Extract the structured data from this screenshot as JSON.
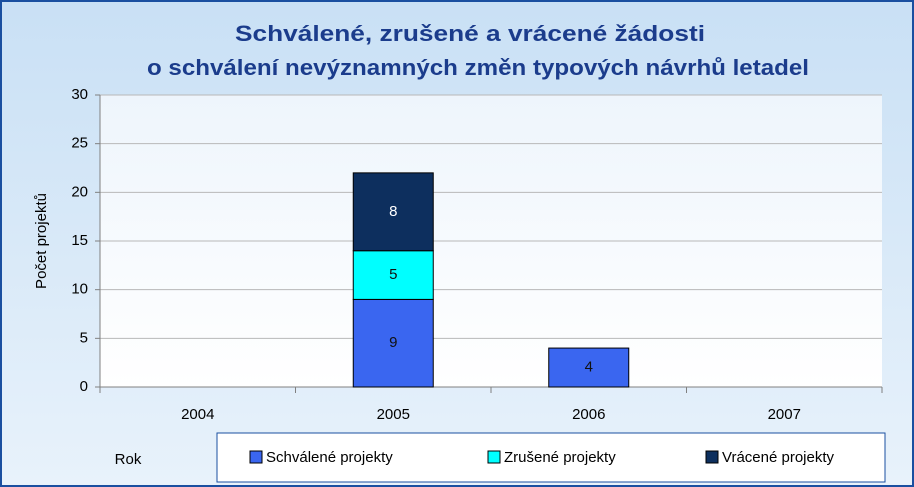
{
  "chart_data": {
    "type": "stacked_bar",
    "title": [
      "Schválené, zrušené a vrácené žádosti",
      "o schválení nevýznamných změn typových návrhů letadel"
    ],
    "y_label": "Počet projektů",
    "x_label": "Rok",
    "categories": [
      "2004",
      "2005",
      "2006",
      "2007"
    ],
    "series": [
      {
        "name": "Schválené projekty",
        "color": "#3a66f0",
        "label_color": "#111111",
        "values": [
          0,
          9,
          4,
          0
        ]
      },
      {
        "name": "Zrušené projekty",
        "color": "#00ffff",
        "label_color": "#111111",
        "values": [
          0,
          5,
          0,
          0
        ]
      },
      {
        "name": "Vrácené projekty",
        "color": "#0d2f5e",
        "label_color": "#ffffff",
        "values": [
          0,
          8,
          0,
          0
        ]
      }
    ],
    "ylim": [
      0,
      30
    ],
    "yticks": [
      0,
      5,
      10,
      15,
      20,
      25,
      30
    ],
    "grid": true,
    "legend": "bottom"
  }
}
